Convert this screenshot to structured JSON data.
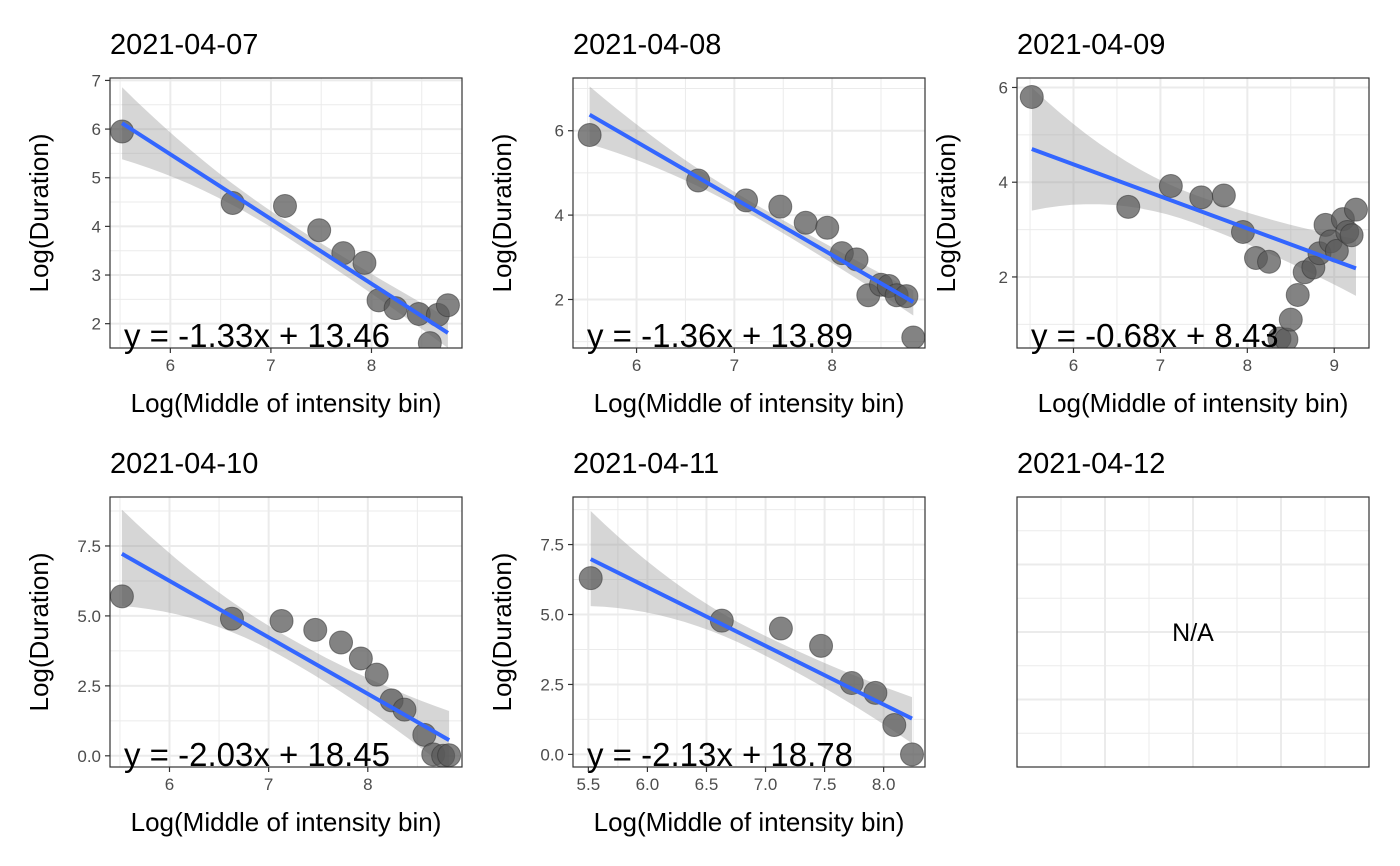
{
  "chart_data": [
    {
      "type": "scatter",
      "title": "2021-04-07",
      "xlabel": "Log(Middle of intensity bin)",
      "ylabel": "Log(Duration)",
      "xlim": [
        5.4,
        8.9
      ],
      "ylim": [
        1.5,
        7.05
      ],
      "xticks": [
        6,
        7,
        8
      ],
      "yticks": [
        2,
        3,
        4,
        5,
        6,
        7
      ],
      "grid": true,
      "points": {
        "x": [
          5.52,
          6.62,
          7.14,
          7.48,
          7.72,
          7.93,
          8.07,
          8.24,
          8.47,
          8.58,
          8.66,
          8.76
        ],
        "y": [
          5.95,
          4.48,
          4.42,
          3.92,
          3.45,
          3.25,
          2.48,
          2.32,
          2.2,
          1.6,
          2.18,
          2.38
        ]
      },
      "fit": {
        "x": [
          5.52,
          8.76
        ],
        "y": [
          6.12,
          1.81
        ]
      },
      "band": {
        "x": [
          5.52,
          8.76
        ],
        "upper": [
          6.86,
          2.12
        ],
        "lower": [
          5.38,
          1.5
        ],
        "mid_half": 0.16
      },
      "annotation": "y = -1.33x + 13.46"
    },
    {
      "type": "scatter",
      "title": "2021-04-08",
      "xlabel": "Log(Middle of intensity bin)",
      "ylabel": "Log(Duration)",
      "xlim": [
        5.35,
        8.95
      ],
      "ylim": [
        0.85,
        7.25
      ],
      "xticks": [
        6,
        7,
        8
      ],
      "yticks": [
        2,
        4,
        6
      ],
      "grid": true,
      "points": {
        "x": [
          5.52,
          6.63,
          7.12,
          7.47,
          7.73,
          7.95,
          8.1,
          8.25,
          8.37,
          8.5,
          8.58,
          8.66,
          8.76,
          8.83
        ],
        "y": [
          5.9,
          4.82,
          4.35,
          4.2,
          3.82,
          3.7,
          3.1,
          2.95,
          2.1,
          2.35,
          2.32,
          2.1,
          2.08,
          1.1
        ]
      },
      "fit": {
        "x": [
          5.52,
          8.83
        ],
        "y": [
          6.38,
          1.94
        ]
      },
      "band": {
        "x": [
          5.52,
          8.83
        ],
        "upper": [
          7.05,
          2.22
        ],
        "lower": [
          5.68,
          1.62
        ],
        "mid_half": 0.15
      },
      "annotation": "y = -1.36x + 13.89"
    },
    {
      "type": "scatter",
      "title": "2021-04-09",
      "xlabel": "Log(Middle of intensity bin)",
      "ylabel": "Log(Duration)",
      "xlim": [
        5.35,
        9.4
      ],
      "ylim": [
        0.5,
        6.2
      ],
      "xticks": [
        6,
        7,
        8,
        9
      ],
      "yticks": [
        2,
        4,
        6
      ],
      "grid": true,
      "points": {
        "x": [
          5.52,
          6.63,
          7.12,
          7.47,
          7.73,
          7.95,
          8.1,
          8.25,
          8.37,
          8.45,
          8.5,
          8.58,
          8.66,
          8.76,
          8.83,
          8.9,
          8.96,
          9.03,
          9.1,
          9.15,
          9.2,
          9.25
        ],
        "y": [
          5.8,
          3.48,
          3.92,
          3.68,
          3.72,
          2.95,
          2.4,
          2.32,
          0.7,
          0.68,
          1.1,
          1.62,
          2.1,
          2.2,
          2.5,
          3.1,
          2.75,
          2.55,
          3.22,
          2.95,
          2.88,
          3.42
        ]
      },
      "fit": {
        "x": [
          5.52,
          9.25
        ],
        "y": [
          4.7,
          2.18
        ]
      },
      "band": {
        "x": [
          5.52,
          9.25
        ],
        "upper": [
          6.0,
          2.8
        ],
        "lower": [
          3.4,
          1.6
        ],
        "mid_half": 0.3
      },
      "annotation": "y = -0.68x + 8.43"
    },
    {
      "type": "scatter",
      "title": "2021-04-10",
      "xlabel": "Log(Middle of intensity bin)",
      "ylabel": "Log(Duration)",
      "xlim": [
        5.4,
        8.95
      ],
      "ylim": [
        -0.4,
        9.25
      ],
      "xticks": [
        6,
        7,
        8
      ],
      "yticks": [
        0.0,
        2.5,
        5.0,
        7.5
      ],
      "grid": true,
      "points": {
        "x": [
          5.52,
          6.63,
          7.13,
          7.47,
          7.73,
          7.93,
          8.09,
          8.24,
          8.37,
          8.57,
          8.66,
          8.76,
          8.82
        ],
        "y": [
          5.7,
          4.9,
          4.82,
          4.5,
          4.05,
          3.48,
          2.9,
          1.98,
          1.65,
          0.75,
          0.05,
          0.0,
          0.02
        ]
      },
      "fit": {
        "x": [
          5.52,
          8.82
        ],
        "y": [
          7.22,
          0.56
        ]
      },
      "band": {
        "x": [
          5.52,
          8.82
        ],
        "upper": [
          8.8,
          1.6
        ],
        "lower": [
          5.35,
          -0.5
        ],
        "mid_half": 0.4
      },
      "annotation": "y = -2.03x + 18.45"
    },
    {
      "type": "scatter",
      "title": "2021-04-11",
      "xlabel": "Log(Middle of intensity bin)",
      "ylabel": "Log(Duration)",
      "xlim": [
        5.37,
        8.35
      ],
      "ylim": [
        -0.45,
        9.2
      ],
      "xticks": [
        5.5,
        6.0,
        6.5,
        7.0,
        7.5,
        8.0
      ],
      "yticks": [
        0.0,
        2.5,
        5.0,
        7.5
      ],
      "grid": true,
      "points": {
        "x": [
          5.52,
          6.63,
          7.13,
          7.47,
          7.73,
          7.93,
          8.09,
          8.24
        ],
        "y": [
          6.3,
          4.78,
          4.5,
          3.88,
          2.55,
          2.2,
          1.05,
          0.0
        ]
      },
      "fit": {
        "x": [
          5.52,
          8.24
        ],
        "y": [
          6.98,
          1.28
        ]
      },
      "band": {
        "x": [
          5.52,
          8.24
        ],
        "upper": [
          8.7,
          2.05
        ],
        "lower": [
          5.3,
          0.4
        ],
        "mid_half": 0.35
      },
      "annotation": "y = -2.13x + 18.78"
    },
    {
      "type": "scatter",
      "title": "2021-04-12",
      "empty": true,
      "annotation": "N/A"
    }
  ],
  "colors": {
    "points": "#595959",
    "fit_line": "#3366ff",
    "band": "#999999",
    "grid": "#ebebeb",
    "panel_border": "#333333"
  }
}
